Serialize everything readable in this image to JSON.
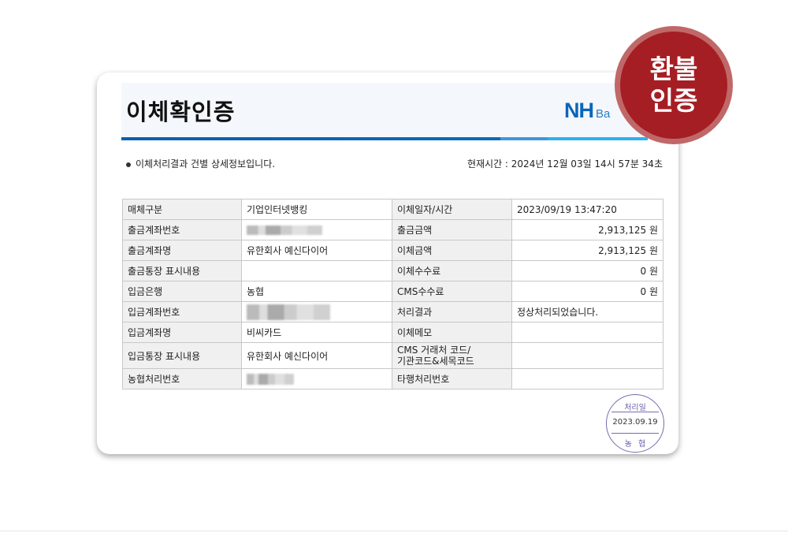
{
  "header": {
    "title": "이체확인증",
    "logo": "NH",
    "logo_suffix": "Ba"
  },
  "intro": "이체처리결과 건별 상세정보입니다.",
  "current_time": "현재시간 : 2024년 12월 03일 14시 57분 34초",
  "badge": {
    "line1": "환불",
    "line2": "인증",
    "color": "#a51e24"
  },
  "rows": [
    {
      "l1": "매체구분",
      "v1": "기업인터넷뱅킹",
      "l2": "이체일자/시간",
      "v2": "2023/09/19 13:47:20"
    },
    {
      "l1": "출금계좌번호",
      "v1": "",
      "l2": "출금금액",
      "v2": "2,913,125 원"
    },
    {
      "l1": "출금계좌명",
      "v1": "유한회사 예신다이어",
      "l2": "이체금액",
      "v2": "2,913,125 원"
    },
    {
      "l1": "출금통장 표시내용",
      "v1": "",
      "l2": "이체수수료",
      "v2": "0 원"
    },
    {
      "l1": "입금은행",
      "v1": "농협",
      "l2": "CMS수수료",
      "v2": "0 원"
    },
    {
      "l1": "입금계좌번호",
      "v1": "",
      "l2": "처리결과",
      "v2": "정상처리되었습니다."
    },
    {
      "l1": "입금계좌명",
      "v1": "비씨카드",
      "l2": "이체메모",
      "v2": ""
    },
    {
      "l1": "입금통장 표시내용",
      "v1": "유한회사 예신다이어",
      "l2a": "CMS 거래처 코드/",
      "l2b": "기관코드&세목코드",
      "v2": ""
    },
    {
      "l1": "농협처리번호",
      "v1": "",
      "l2": "타행처리번호",
      "v2": ""
    }
  ],
  "stamp": {
    "top": "처리일",
    "date": "2023.09.19",
    "bottom": "농협"
  }
}
